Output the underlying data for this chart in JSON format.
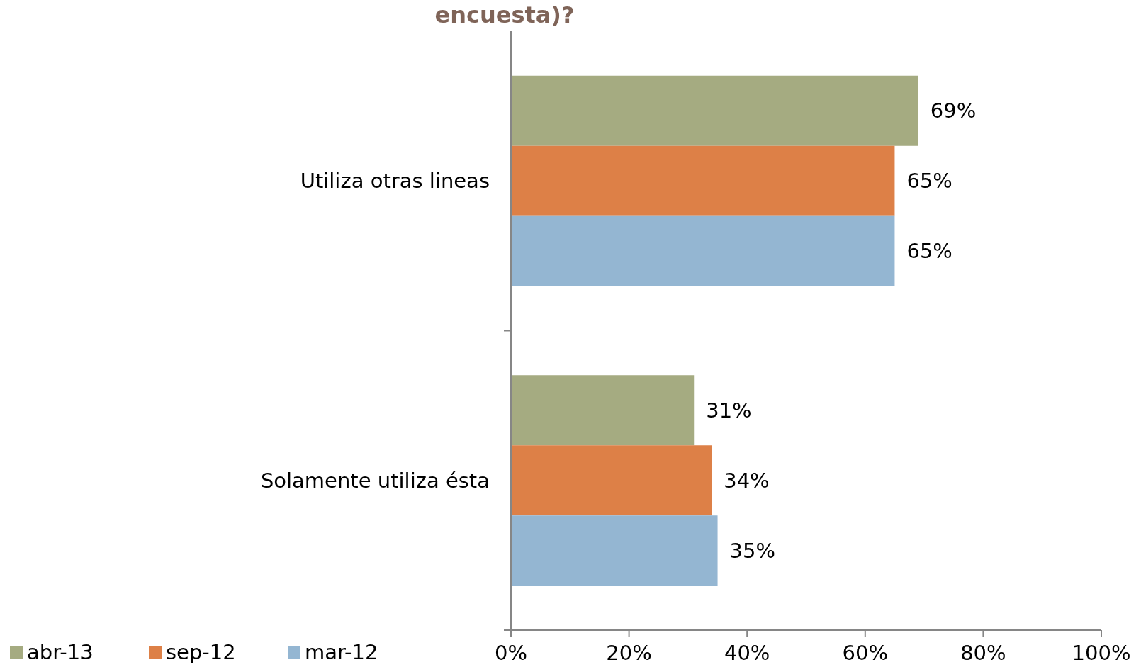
{
  "chart_data": {
    "type": "bar",
    "orientation": "horizontal",
    "title": "encuesta)?",
    "categories": [
      "Utiliza otras lineas",
      "Solamente utiliza ésta"
    ],
    "series": [
      {
        "name": "abr-13",
        "color": "#a5ab81",
        "values": [
          69,
          31
        ],
        "value_labels": [
          "69%",
          "31%"
        ]
      },
      {
        "name": "sep-12",
        "color": "#dd8047",
        "values": [
          65,
          34
        ],
        "value_labels": [
          "65%",
          "34%"
        ]
      },
      {
        "name": "mar-12",
        "color": "#94b6d2",
        "values": [
          65,
          35
        ],
        "value_labels": [
          "65%",
          "35%"
        ]
      }
    ],
    "xlim": [
      0,
      100
    ],
    "xticks": [
      {
        "value": 0,
        "label": "0%"
      },
      {
        "value": 20,
        "label": "20%"
      },
      {
        "value": 40,
        "label": "40%"
      },
      {
        "value": 60,
        "label": "60%"
      },
      {
        "value": 80,
        "label": "80%"
      },
      {
        "value": 100,
        "label": "100%"
      }
    ],
    "legend": "bottom left",
    "grid": false
  }
}
